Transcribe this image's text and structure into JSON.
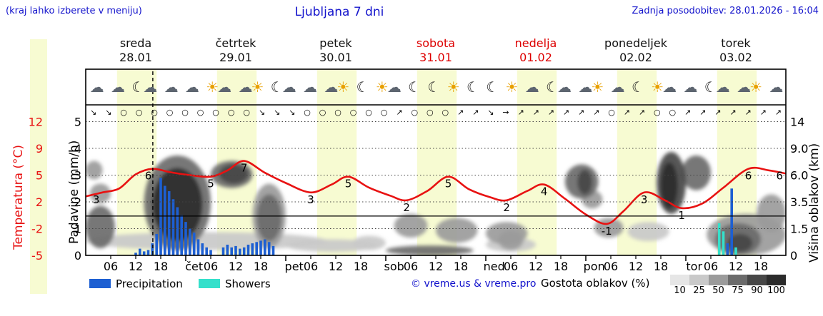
{
  "header": {
    "hint": "(kraj lahko izberete v meniju)",
    "title": "Ljubljana 7 dni",
    "updated": "Zadnja posodobitev: 28.01.2026 - 16:04"
  },
  "days": [
    {
      "name": "sreda",
      "date": "28.01",
      "weekend": false
    },
    {
      "name": "četrtek",
      "date": "29.01",
      "weekend": false
    },
    {
      "name": "petek",
      "date": "30.01",
      "weekend": false
    },
    {
      "name": "sobota",
      "date": "31.01",
      "weekend": true
    },
    {
      "name": "nedelja",
      "date": "01.02",
      "weekend": true
    },
    {
      "name": "ponedeljek",
      "date": "02.02",
      "weekend": false
    },
    {
      "name": "torek",
      "date": "03.02",
      "weekend": false
    }
  ],
  "icons": [
    "☁",
    "☁",
    "☾☁",
    "☁",
    "☁",
    "☀☁",
    "☁☀",
    "☾☁",
    "☁",
    "☁☀",
    "☾",
    "☀☁",
    "☾",
    "☾",
    "☀",
    "☾",
    "☾",
    "☀",
    "☁",
    "☾☁",
    "☁☀",
    "☁",
    "☾",
    "☀☁",
    "☁",
    "☾☁",
    "☁☀",
    "☁"
  ],
  "wind": [
    "↘",
    "↘",
    "○",
    "○",
    "○",
    "○",
    "○",
    "○",
    "○",
    "○",
    "○",
    "↘",
    "↘",
    "↘",
    "○",
    "○",
    "○",
    "○",
    "○",
    "○",
    "↗",
    "○",
    "○",
    "○",
    "↗",
    "↗",
    "↘",
    "→",
    "↗",
    "↗",
    "↗",
    "↗",
    "↗",
    "↗",
    "○",
    "↗",
    "↗",
    "○",
    "○",
    "↗",
    "↗",
    "↗",
    "↗",
    "↗",
    "↗",
    "↗"
  ],
  "axes": {
    "temp_label": "Temperatura (°C)",
    "precip_label": "Padavine (mm/h)",
    "cloud_label": "Višina oblakov (km)",
    "temp_ticks": [
      "12",
      "9",
      "5",
      "2",
      "-2",
      "-5"
    ],
    "precip_ticks": [
      "5",
      "4",
      "3",
      "2",
      "1",
      "0"
    ],
    "cloud_ticks": [
      "14",
      "9.0",
      "6.0",
      "3.5",
      "1.5",
      "0"
    ],
    "hour_labels": [
      "06",
      "12",
      "18"
    ],
    "day_abbrevs": [
      "čet",
      "pet",
      "sob",
      "ned",
      "pon",
      "tor"
    ]
  },
  "legend": {
    "precipitation": "Precipitation",
    "showers": "Showers",
    "credit": "© vreme.us & vreme.pro",
    "cloud_density_label": "Gostota oblakov (%)",
    "cloud_density_ticks": [
      "10",
      "25",
      "50",
      "75",
      "90",
      "100"
    ]
  },
  "colors": {
    "title_blue": "#1414cc",
    "temp_red": "#e81212",
    "rain_blue": "#1d5fd2",
    "shower_cyan": "#35e0cb",
    "day_band": "#f7fbd2",
    "weekend_red": "#dd0000",
    "cloud_grays": {
      "10": "#e6e6e6",
      "25": "#c9c9c9",
      "50": "#9b9b9b",
      "75": "#6b6b6b",
      "90": "#474747",
      "100": "#2b2b2b"
    }
  },
  "chart_data": {
    "type": "meteogram",
    "title": "Ljubljana 7 dni",
    "hours_total": 168,
    "now_hour": 16.1,
    "daylight_hours": [
      7.5,
      17
    ],
    "temp_axis_ticks": [
      12,
      9,
      5,
      2,
      -2,
      -5
    ],
    "precip_axis_ticks": [
      5,
      4,
      3,
      2,
      1,
      0
    ],
    "cloud_axis_km": [
      14,
      9.0,
      6.0,
      3.5,
      1.5,
      0
    ],
    "zero_line_temp": 0,
    "temperature_points": [
      [
        0,
        2.5
      ],
      [
        4,
        3
      ],
      [
        8,
        3.5
      ],
      [
        12,
        5.3
      ],
      [
        16,
        6
      ],
      [
        20,
        5.6
      ],
      [
        25,
        5.2
      ],
      [
        30,
        5
      ],
      [
        34,
        5.8
      ],
      [
        38,
        7
      ],
      [
        43,
        5.5
      ],
      [
        48,
        4.2
      ],
      [
        54,
        3
      ],
      [
        59,
        4
      ],
      [
        63,
        5
      ],
      [
        68,
        3.6
      ],
      [
        73,
        2.6
      ],
      [
        77,
        2
      ],
      [
        82,
        3.2
      ],
      [
        87,
        5
      ],
      [
        92,
        3.4
      ],
      [
        97,
        2.4
      ],
      [
        101,
        2
      ],
      [
        106,
        3.2
      ],
      [
        110,
        4
      ],
      [
        115,
        2.2
      ],
      [
        120,
        0.2
      ],
      [
        125,
        -1
      ],
      [
        129,
        0.6
      ],
      [
        134,
        3
      ],
      [
        139,
        2
      ],
      [
        143,
        1
      ],
      [
        148,
        1.6
      ],
      [
        153,
        3.6
      ],
      [
        159,
        6
      ],
      [
        164,
        5.8
      ],
      [
        168,
        5.4
      ]
    ],
    "temperature_labels": [
      [
        2.5,
        "3"
      ],
      [
        15,
        "6"
      ],
      [
        30,
        "5"
      ],
      [
        38,
        "7"
      ],
      [
        54,
        "3"
      ],
      [
        63,
        "5"
      ],
      [
        77,
        "2"
      ],
      [
        87,
        "5"
      ],
      [
        101,
        "2"
      ],
      [
        110,
        "4"
      ],
      [
        125,
        "-1"
      ],
      [
        134,
        "3"
      ],
      [
        143,
        "1"
      ],
      [
        159,
        "6"
      ],
      [
        166.5,
        "6"
      ]
    ],
    "precipitation": [
      {
        "h": 12,
        "v": 0.1,
        "t": "rain"
      },
      {
        "h": 13,
        "v": 0.25,
        "t": "rain"
      },
      {
        "h": 14,
        "v": 0.15,
        "t": "rain"
      },
      {
        "h": 15,
        "v": 0.2,
        "t": "rain"
      },
      {
        "h": 16,
        "v": 0.45,
        "t": "rain"
      },
      {
        "h": 17,
        "v": 0.8,
        "t": "rain"
      },
      {
        "h": 18,
        "v": 2.9,
        "t": "rain"
      },
      {
        "h": 19,
        "v": 2.6,
        "t": "rain"
      },
      {
        "h": 20,
        "v": 2.4,
        "t": "rain"
      },
      {
        "h": 21,
        "v": 2.1,
        "t": "rain"
      },
      {
        "h": 22,
        "v": 1.8,
        "t": "rain"
      },
      {
        "h": 23,
        "v": 1.5,
        "t": "rain"
      },
      {
        "h": 24,
        "v": 1.25,
        "t": "rain"
      },
      {
        "h": 25,
        "v": 1.0,
        "t": "rain"
      },
      {
        "h": 26,
        "v": 0.85,
        "t": "rain"
      },
      {
        "h": 27,
        "v": 0.6,
        "t": "rain"
      },
      {
        "h": 28,
        "v": 0.45,
        "t": "rain"
      },
      {
        "h": 29,
        "v": 0.3,
        "t": "rain"
      },
      {
        "h": 30,
        "v": 0.2,
        "t": "rain"
      },
      {
        "h": 33,
        "v": 0.3,
        "t": "rain"
      },
      {
        "h": 34,
        "v": 0.4,
        "t": "rain"
      },
      {
        "h": 35,
        "v": 0.3,
        "t": "rain"
      },
      {
        "h": 36,
        "v": 0.35,
        "t": "rain"
      },
      {
        "h": 37,
        "v": 0.25,
        "t": "rain"
      },
      {
        "h": 38,
        "v": 0.3,
        "t": "rain"
      },
      {
        "h": 39,
        "v": 0.4,
        "t": "rain"
      },
      {
        "h": 40,
        "v": 0.45,
        "t": "rain"
      },
      {
        "h": 41,
        "v": 0.5,
        "t": "rain"
      },
      {
        "h": 42,
        "v": 0.55,
        "t": "rain"
      },
      {
        "h": 43,
        "v": 0.6,
        "t": "rain"
      },
      {
        "h": 44,
        "v": 0.5,
        "t": "rain"
      },
      {
        "h": 45,
        "v": 0.35,
        "t": "rain"
      },
      {
        "h": 152,
        "v": 1.2,
        "t": "shower"
      },
      {
        "h": 153,
        "v": 0.9,
        "t": "shower"
      },
      {
        "h": 154,
        "v": 0.45,
        "t": "rain"
      },
      {
        "h": 155,
        "v": 2.5,
        "t": "rain"
      },
      {
        "h": 156,
        "v": 0.3,
        "t": "shower"
      }
    ],
    "clouds": [
      {
        "h": [
          0,
          58
        ],
        "km": [
          0.3,
          1.3
        ],
        "d": 25
      },
      {
        "h": [
          48,
          70
        ],
        "km": [
          0.2,
          0.9
        ],
        "d": 25
      },
      {
        "h": [
          64,
          72
        ],
        "km": [
          0.3,
          1.1
        ],
        "d": 25
      },
      {
        "h": [
          96,
          108
        ],
        "km": [
          0.2,
          1.0
        ],
        "d": 25
      },
      {
        "h": [
          130,
          140
        ],
        "km": [
          0.8,
          2.0
        ],
        "d": 25
      },
      {
        "h": [
          0,
          4
        ],
        "km": [
          5.6,
          7.6
        ],
        "d": 50
      },
      {
        "h": [
          1,
          6
        ],
        "km": [
          3.4,
          5.2
        ],
        "d": 50
      },
      {
        "h": [
          40,
          48
        ],
        "km": [
          0.4,
          5.2
        ],
        "d": 50
      },
      {
        "h": [
          74,
          82
        ],
        "km": [
          1.0,
          2.6
        ],
        "d": 50
      },
      {
        "h": [
          84,
          94
        ],
        "km": [
          0.7,
          2.3
        ],
        "d": 50
      },
      {
        "h": [
          96,
          106
        ],
        "km": [
          0.6,
          2.0
        ],
        "d": 50
      },
      {
        "h": [
          99,
          105
        ],
        "km": [
          0.3,
          1.4
        ],
        "d": 50
      },
      {
        "h": [
          119,
          124
        ],
        "km": [
          3.0,
          4.6
        ],
        "d": 50
      },
      {
        "h": [
          122,
          129
        ],
        "km": [
          1.0,
          2.3
        ],
        "d": 50
      },
      {
        "h": [
          149,
          168
        ],
        "km": [
          0,
          2.6
        ],
        "d": 50
      },
      {
        "h": [
          161,
          168
        ],
        "km": [
          1.3,
          4.2
        ],
        "d": 50
      },
      {
        "h": [
          0,
          7
        ],
        "km": [
          0.4,
          3.2
        ],
        "d": 75
      },
      {
        "h": [
          14,
          30
        ],
        "km": [
          0.3,
          8.2
        ],
        "d": 75
      },
      {
        "h": [
          30,
          40
        ],
        "km": [
          4.8,
          7.6
        ],
        "d": 75
      },
      {
        "h": [
          41,
          47
        ],
        "km": [
          0.8,
          4.2
        ],
        "d": 75
      },
      {
        "h": [
          72,
          93
        ],
        "km": [
          0,
          0.55
        ],
        "d": 75
      },
      {
        "h": [
          115,
          123
        ],
        "km": [
          3.8,
          7.2
        ],
        "d": 75
      },
      {
        "h": [
          143,
          150
        ],
        "km": [
          4.6,
          8.2
        ],
        "d": 75
      },
      {
        "h": [
          151,
          162
        ],
        "km": [
          0,
          1.9
        ],
        "d": 75
      },
      {
        "h": [
          32,
          39
        ],
        "km": [
          5.2,
          7.2
        ],
        "d": 90
      },
      {
        "h": [
          118,
          121.5
        ],
        "km": [
          4.2,
          6.6
        ],
        "d": 90
      },
      {
        "h": [
          137,
          144
        ],
        "km": [
          2.6,
          8.6
        ],
        "d": 90
      },
      {
        "h": [
          154,
          160
        ],
        "km": [
          0.2,
          1.2
        ],
        "d": 90
      },
      {
        "h": [
          16,
          28
        ],
        "km": [
          0.8,
          6.8
        ],
        "d": 100
      },
      {
        "h": [
          138,
          142
        ],
        "km": [
          3.0,
          7.4
        ],
        "d": 100
      }
    ]
  }
}
